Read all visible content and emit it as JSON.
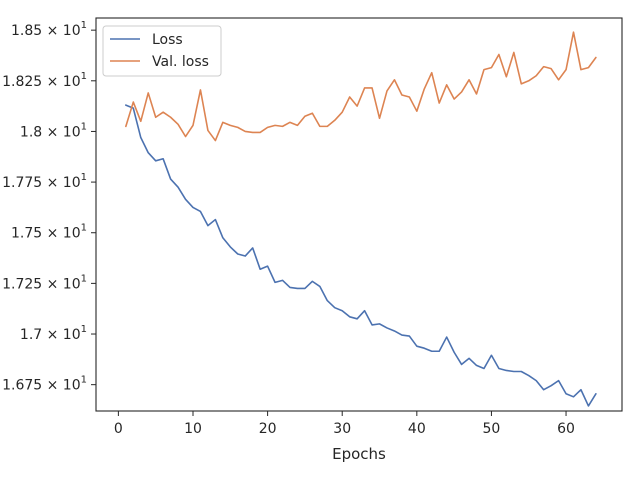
{
  "chart_data": {
    "type": "line",
    "title": "",
    "xlabel": "Epochs",
    "ylabel": "",
    "xlim": [
      -3,
      67.5
    ],
    "ylim": [
      16.62,
      18.56
    ],
    "grid": false,
    "legend_position": "top-left",
    "x_ticks": [
      {
        "value": 0,
        "label": "0"
      },
      {
        "value": 10,
        "label": "10"
      },
      {
        "value": 20,
        "label": "20"
      },
      {
        "value": 30,
        "label": "30"
      },
      {
        "value": 40,
        "label": "40"
      },
      {
        "value": 50,
        "label": "50"
      },
      {
        "value": 60,
        "label": "60"
      }
    ],
    "y_ticks": [
      {
        "value": 16.75,
        "mantissa": "1.675",
        "exponent": "1"
      },
      {
        "value": 17.0,
        "mantissa": "1.7",
        "exponent": "1"
      },
      {
        "value": 17.25,
        "mantissa": "1.725",
        "exponent": "1"
      },
      {
        "value": 17.5,
        "mantissa": "1.75",
        "exponent": "1"
      },
      {
        "value": 17.75,
        "mantissa": "1.775",
        "exponent": "1"
      },
      {
        "value": 18.0,
        "mantissa": "1.8",
        "exponent": "1"
      },
      {
        "value": 18.25,
        "mantissa": "1.825",
        "exponent": "1"
      },
      {
        "value": 18.5,
        "mantissa": "1.85",
        "exponent": "1"
      }
    ],
    "x": [
      1,
      2,
      3,
      4,
      5,
      6,
      7,
      8,
      9,
      10,
      11,
      12,
      13,
      14,
      15,
      16,
      17,
      18,
      19,
      20,
      21,
      22,
      23,
      24,
      25,
      26,
      27,
      28,
      29,
      30,
      31,
      32,
      33,
      34,
      35,
      36,
      37,
      38,
      39,
      40,
      41,
      42,
      43,
      44,
      45,
      46,
      47,
      48,
      49,
      50,
      51,
      52,
      53,
      54,
      55,
      56,
      57,
      58,
      59,
      60,
      61,
      62,
      63,
      64
    ],
    "series": [
      {
        "name": "Loss",
        "color": "#4c72b0",
        "values": [
          18.13,
          18.115,
          17.97,
          17.895,
          17.855,
          17.865,
          17.765,
          17.725,
          17.665,
          17.625,
          17.605,
          17.535,
          17.565,
          17.475,
          17.43,
          17.395,
          17.385,
          17.425,
          17.32,
          17.335,
          17.255,
          17.265,
          17.23,
          17.225,
          17.225,
          17.26,
          17.235,
          17.165,
          17.13,
          17.115,
          17.085,
          17.075,
          17.115,
          17.045,
          17.05,
          17.03,
          17.015,
          16.995,
          16.99,
          16.94,
          16.93,
          16.915,
          16.915,
          16.985,
          16.91,
          16.85,
          16.88,
          16.845,
          16.83,
          16.895,
          16.83,
          16.82,
          16.815,
          16.815,
          16.795,
          16.77,
          16.725,
          16.745,
          16.77,
          16.705,
          16.69,
          16.725,
          16.645,
          16.705
        ]
      },
      {
        "name": "Val. loss",
        "color": "#dd8452",
        "values": [
          18.025,
          18.145,
          18.05,
          18.19,
          18.07,
          18.095,
          18.07,
          18.035,
          17.975,
          18.03,
          18.205,
          18.005,
          17.955,
          18.045,
          18.03,
          18.02,
          18.0,
          17.995,
          17.995,
          18.02,
          18.03,
          18.025,
          18.045,
          18.03,
          18.075,
          18.09,
          18.025,
          18.025,
          18.055,
          18.095,
          18.17,
          18.125,
          18.215,
          18.215,
          18.065,
          18.2,
          18.255,
          18.18,
          18.17,
          18.1,
          18.21,
          18.29,
          18.14,
          18.23,
          18.16,
          18.195,
          18.255,
          18.185,
          18.305,
          18.315,
          18.38,
          18.27,
          18.39,
          18.235,
          18.25,
          18.275,
          18.32,
          18.31,
          18.255,
          18.305,
          18.49,
          18.305,
          18.315,
          18.365
        ]
      }
    ]
  }
}
